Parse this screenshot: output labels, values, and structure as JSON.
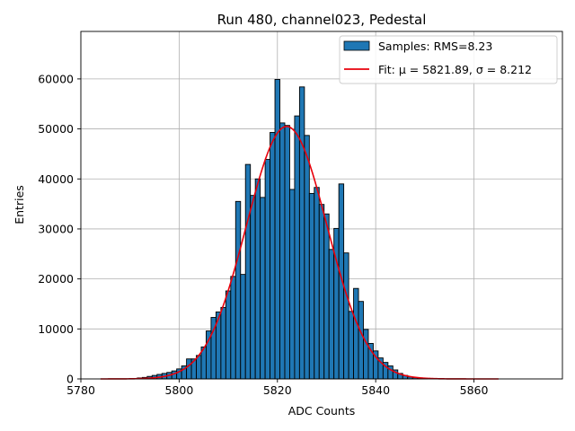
{
  "chart_data": {
    "type": "bar",
    "title": "Run 480, channel023, Pedestal",
    "xlabel": "ADC Counts",
    "ylabel": "Entries",
    "xlim": [
      5780,
      5878
    ],
    "ylim": [
      0,
      69500
    ],
    "xticks": [
      5780,
      5800,
      5820,
      5840,
      5860
    ],
    "yticks": [
      0,
      10000,
      20000,
      30000,
      40000,
      50000,
      60000
    ],
    "grid": true,
    "legend_position": "top-right",
    "bin_width": 1,
    "colors": {
      "bars": "#1f77b4",
      "bar_edge": "#000000",
      "fit": "#e8000b",
      "grid": "#b0b0b0"
    },
    "series": [
      {
        "name": "Samples: RMS=8.23",
        "type": "histogram",
        "x": [
          5791,
          5792,
          5793,
          5794,
          5795,
          5796,
          5797,
          5798,
          5799,
          5800,
          5801,
          5802,
          5803,
          5804,
          5805,
          5806,
          5807,
          5808,
          5809,
          5810,
          5811,
          5812,
          5813,
          5814,
          5815,
          5816,
          5817,
          5818,
          5819,
          5820,
          5821,
          5822,
          5823,
          5824,
          5825,
          5826,
          5827,
          5828,
          5829,
          5830,
          5831,
          5832,
          5833,
          5834,
          5835,
          5836,
          5837,
          5838,
          5839,
          5840,
          5841,
          5842,
          5843,
          5844,
          5845,
          5846,
          5847,
          5848,
          5849,
          5850
        ],
        "values": [
          100,
          200,
          300,
          500,
          700,
          900,
          1100,
          1300,
          1600,
          2000,
          2600,
          4000,
          4000,
          4700,
          6400,
          9600,
          12300,
          13400,
          14300,
          17600,
          20500,
          35500,
          20900,
          42900,
          36700,
          40000,
          36300,
          43900,
          49300,
          59900,
          51200,
          50700,
          37900,
          52600,
          58400,
          48700,
          37100,
          38300,
          34900,
          33000,
          25900,
          30100,
          39000,
          25200,
          13500,
          18100,
          15500,
          9900,
          7100,
          5600,
          4200,
          3300,
          2600,
          1800,
          1100,
          700,
          400,
          250,
          120,
          60
        ]
      },
      {
        "name": "Fit: μ = 5821.89, σ = 8.212",
        "type": "line",
        "function": "gaussian",
        "mu": 5821.89,
        "sigma": 8.212,
        "amplitude": 50500,
        "x_range": [
          5784,
          5865
        ]
      }
    ]
  }
}
